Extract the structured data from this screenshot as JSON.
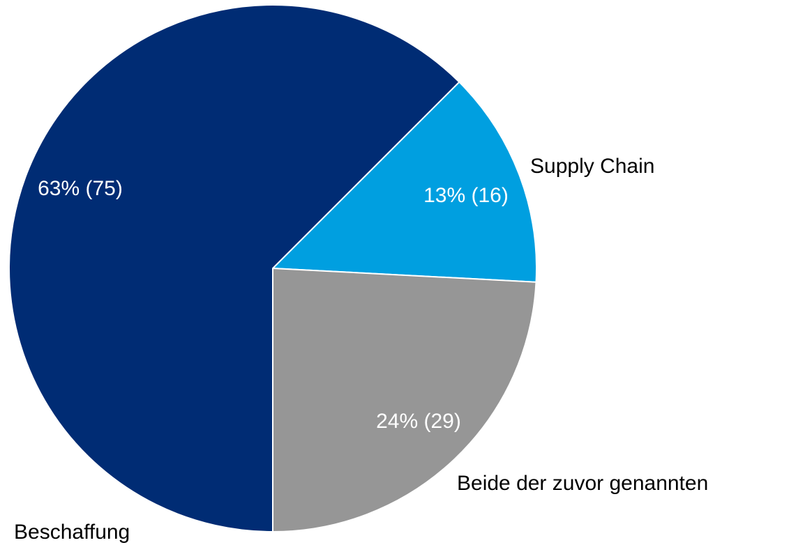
{
  "chart_data": {
    "type": "pie",
    "categories": [
      "Supply Chain",
      "Beide der zuvor genannten",
      "Beschaffung"
    ],
    "values": [
      16,
      29,
      75
    ],
    "value_labels": [
      "13% (16)",
      "24% (29)",
      "63% (75)"
    ],
    "colors": [
      "#009fe0",
      "#969696",
      "#002c74"
    ]
  }
}
